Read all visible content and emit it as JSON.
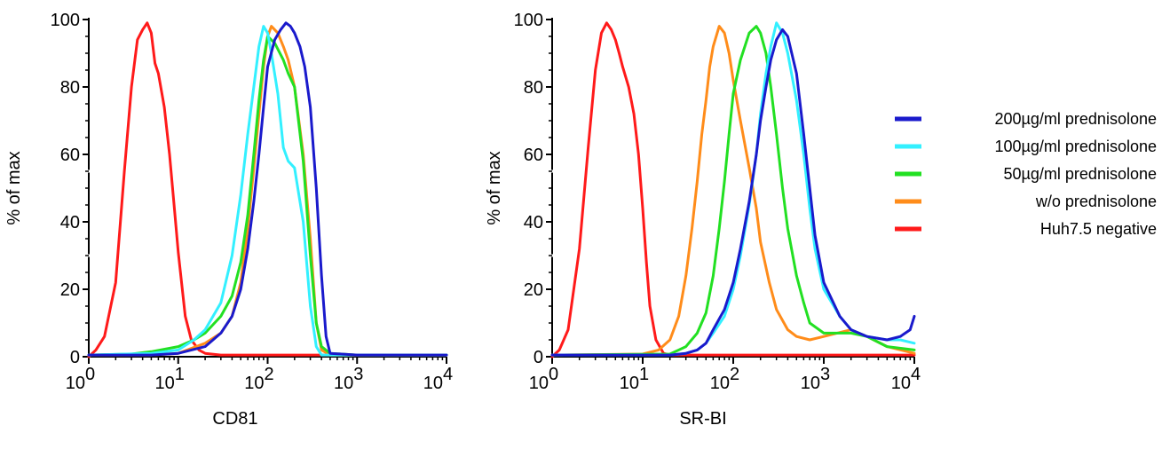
{
  "chart_data": [
    {
      "type": "line",
      "xlabel": "CD81",
      "ylabel": "% of max",
      "xscale": "log",
      "xlim": [
        1,
        10000
      ],
      "ylim": [
        0,
        100
      ],
      "yticks": [
        "0",
        "20",
        "40",
        "60",
        "80",
        "100"
      ],
      "xticks": [
        {
          "base": "10",
          "exp": "0"
        },
        {
          "base": "10",
          "exp": "1"
        },
        {
          "base": "10",
          "exp": "2"
        },
        {
          "base": "10",
          "exp": "3"
        },
        {
          "base": "10",
          "exp": "4"
        }
      ],
      "series": [
        {
          "name": "Huh7.5  negative",
          "color": "#ff1a1a",
          "x": [
            1,
            1.2,
            1.5,
            2,
            2.5,
            3,
            3.5,
            4,
            4.5,
            5,
            5.5,
            6,
            7,
            8,
            9,
            10,
            12,
            14,
            17,
            20,
            30,
            100,
            1000,
            10000
          ],
          "y": [
            0,
            2,
            6,
            22,
            55,
            80,
            94,
            97,
            99,
            96,
            87,
            84,
            74,
            60,
            45,
            31,
            12,
            5,
            2,
            1,
            0.5,
            0.5,
            0.5,
            0.5
          ]
        },
        {
          "name": "w/o prednisolone",
          "color": "#ff8c1a",
          "x": [
            1,
            5,
            10,
            20,
            30,
            40,
            50,
            60,
            70,
            80,
            90,
            100,
            110,
            130,
            150,
            170,
            200,
            250,
            300,
            350,
            400,
            500,
            1000,
            10000
          ],
          "y": [
            0.5,
            0.5,
            1,
            4,
            7,
            12,
            22,
            38,
            56,
            72,
            86,
            95,
            98,
            96,
            92,
            88,
            80,
            60,
            35,
            10,
            2,
            0.5,
            0.5,
            0.5
          ]
        },
        {
          "name": "50µg/ml prednisolone",
          "color": "#22e022",
          "x": [
            1,
            3,
            5,
            10,
            15,
            20,
            30,
            40,
            50,
            60,
            70,
            80,
            90,
            100,
            120,
            150,
            170,
            200,
            250,
            300,
            350,
            400,
            500,
            1000,
            10000
          ],
          "y": [
            0.5,
            0.8,
            1.5,
            3,
            5,
            7,
            12,
            18,
            28,
            42,
            60,
            76,
            88,
            95,
            93,
            88,
            84,
            80,
            58,
            30,
            10,
            3,
            1,
            0.5,
            0.5
          ]
        },
        {
          "name": "100µg/ml prednisolone",
          "color": "#33f0ff",
          "x": [
            1,
            5,
            10,
            15,
            20,
            30,
            40,
            50,
            60,
            70,
            80,
            90,
            100,
            110,
            130,
            150,
            170,
            200,
            250,
            300,
            350,
            400,
            1000,
            10000
          ],
          "y": [
            0.5,
            1,
            2,
            5,
            8,
            16,
            30,
            48,
            66,
            80,
            92,
            98,
            96,
            90,
            78,
            62,
            58,
            56,
            40,
            15,
            3,
            0.5,
            0.5,
            0.5
          ]
        },
        {
          "name": "200µg/ml prednisolone",
          "color": "#1a1acc",
          "x": [
            1,
            5,
            10,
            20,
            30,
            40,
            50,
            60,
            70,
            80,
            90,
            100,
            120,
            140,
            160,
            180,
            200,
            230,
            260,
            300,
            350,
            400,
            450,
            500,
            1000,
            10000
          ],
          "y": [
            0.5,
            0.5,
            1,
            3,
            7,
            12,
            20,
            32,
            46,
            60,
            74,
            86,
            94,
            97,
            99,
            98,
            96,
            92,
            86,
            74,
            50,
            24,
            6,
            1,
            0.5,
            0.5
          ]
        }
      ]
    },
    {
      "type": "line",
      "xlabel": "SR-BI",
      "ylabel": "% of max",
      "xscale": "log",
      "xlim": [
        1,
        10000
      ],
      "ylim": [
        0,
        100
      ],
      "yticks": [
        "0",
        "20",
        "40",
        "60",
        "80",
        "100"
      ],
      "xticks": [
        {
          "base": "10",
          "exp": "0"
        },
        {
          "base": "10",
          "exp": "1"
        },
        {
          "base": "10",
          "exp": "2"
        },
        {
          "base": "10",
          "exp": "3"
        },
        {
          "base": "10",
          "exp": "4"
        }
      ],
      "series": [
        {
          "name": "Huh7.5  negative",
          "color": "#ff1a1a",
          "x": [
            1,
            1.2,
            1.5,
            2,
            2.5,
            3,
            3.5,
            4,
            4.5,
            5,
            5.5,
            6,
            7,
            8,
            9,
            10,
            11,
            12,
            14,
            17,
            20,
            100,
            1000,
            10000
          ],
          "y": [
            0,
            2,
            8,
            32,
            62,
            85,
            96,
            99,
            97,
            94,
            90,
            86,
            80,
            72,
            60,
            44,
            28,
            15,
            5,
            1,
            0.5,
            0.5,
            0.5,
            0.5
          ]
        },
        {
          "name": "w/o prednisolone",
          "color": "#ff8c1a",
          "x": [
            1,
            10,
            15,
            20,
            25,
            30,
            35,
            40,
            45,
            50,
            55,
            60,
            70,
            80,
            90,
            100,
            120,
            150,
            180,
            200,
            250,
            300,
            400,
            500,
            700,
            1000,
            2000,
            3000,
            5000,
            10000
          ],
          "y": [
            0.5,
            0.8,
            2,
            5,
            12,
            24,
            38,
            52,
            66,
            76,
            86,
            92,
            98,
            96,
            90,
            82,
            70,
            56,
            44,
            34,
            22,
            14,
            8,
            6,
            5,
            6,
            8,
            6,
            3,
            1
          ]
        },
        {
          "name": "50µg/ml prednisolone",
          "color": "#22e022",
          "x": [
            1,
            20,
            30,
            40,
            50,
            60,
            70,
            80,
            90,
            100,
            120,
            150,
            180,
            200,
            230,
            260,
            300,
            350,
            400,
            500,
            600,
            700,
            1000,
            2000,
            3000,
            5000,
            10000
          ],
          "y": [
            0.5,
            0.8,
            3,
            7,
            13,
            24,
            38,
            52,
            66,
            78,
            88,
            96,
            98,
            96,
            90,
            80,
            66,
            50,
            38,
            24,
            16,
            10,
            7,
            7,
            6,
            3,
            2
          ]
        },
        {
          "name": "100µg/ml prednisolone",
          "color": "#33f0ff",
          "x": [
            1,
            20,
            30,
            40,
            50,
            60,
            80,
            100,
            120,
            150,
            180,
            200,
            230,
            260,
            300,
            350,
            400,
            500,
            600,
            700,
            800,
            1000,
            1500,
            2000,
            3000,
            5000,
            7000,
            10000
          ],
          "y": [
            0.5,
            0.5,
            1,
            2,
            4,
            7,
            12,
            20,
            30,
            45,
            60,
            72,
            84,
            92,
            99,
            96,
            90,
            76,
            60,
            44,
            32,
            20,
            12,
            8,
            6,
            5,
            5,
            4
          ]
        },
        {
          "name": "200µg/ml prednisolone",
          "color": "#1a1acc",
          "x": [
            1,
            20,
            30,
            40,
            50,
            60,
            80,
            100,
            120,
            150,
            180,
            200,
            230,
            260,
            300,
            350,
            400,
            500,
            600,
            700,
            800,
            1000,
            1500,
            2000,
            3000,
            5000,
            7000,
            9000,
            10000
          ],
          "y": [
            0.5,
            0.5,
            1,
            2,
            4,
            8,
            14,
            22,
            32,
            46,
            60,
            70,
            80,
            88,
            94,
            97,
            95,
            84,
            66,
            50,
            36,
            22,
            12,
            8,
            6,
            5,
            6,
            8,
            12
          ]
        }
      ]
    }
  ],
  "legend": [
    {
      "label": "200µg/ml prednisolone",
      "color": "#1a1acc"
    },
    {
      "label": "100µg/ml prednisolone",
      "color": "#33f0ff"
    },
    {
      "label": "50µg/ml prednisolone",
      "color": "#22e022"
    },
    {
      "label": "w/o prednisolone",
      "color": "#ff8c1a"
    },
    {
      "label": "Huh7.5  negative",
      "color": "#ff1a1a"
    }
  ]
}
